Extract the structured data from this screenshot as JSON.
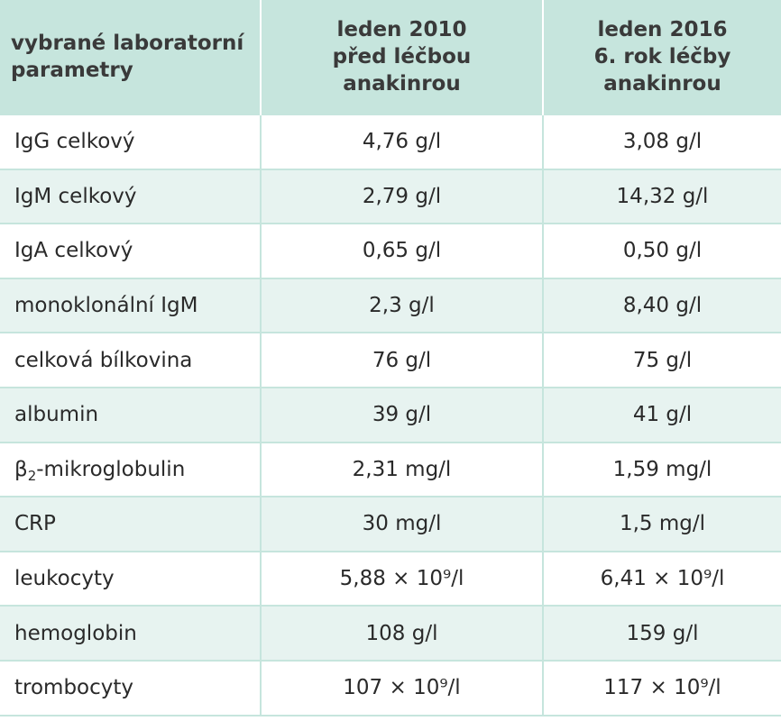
{
  "header": {
    "col1": [
      "vybrané laboratorní",
      "parametry"
    ],
    "col2": [
      "leden 2010",
      "před léčbou",
      "anakinrou"
    ],
    "col3": [
      "leden 2016",
      "6. rok léčby",
      "anakinrou"
    ]
  },
  "rows": [
    {
      "parameter": "IgG celkový",
      "before": "4,76 g/l",
      "after": "3,08 g/l"
    },
    {
      "parameter": "IgM celkový",
      "before": "2,79 g/l",
      "after": "14,32 g/l"
    },
    {
      "parameter": "IgA celkový",
      "before": "0,65 g/l",
      "after": "0,50 g/l"
    },
    {
      "parameter": "monoklonální IgM",
      "before": "2,3 g/l",
      "after": "8,40 g/l"
    },
    {
      "parameter": "celková bílkovina",
      "before": "76 g/l",
      "after": "75 g/l"
    },
    {
      "parameter": "albumin",
      "before": "39 g/l",
      "after": "41 g/l"
    },
    {
      "parameter": "β",
      "parameter_sub": "2",
      "parameter_suffix": "-mikroglobulin",
      "before": "2,31 mg/l",
      "after": "1,59 mg/l"
    },
    {
      "parameter": "CRP",
      "before": "30 mg/l",
      "after": "1,5 mg/l"
    },
    {
      "parameter": "leukocyty",
      "before": "5,88 × 10⁹/l",
      "after": "6,41 × 10⁹/l"
    },
    {
      "parameter": "hemoglobin",
      "before": "108 g/l",
      "after": "159 g/l"
    },
    {
      "parameter": "trombocyty",
      "before": "107 × 10⁹/l",
      "after": "117 × 10⁹/l"
    }
  ]
}
